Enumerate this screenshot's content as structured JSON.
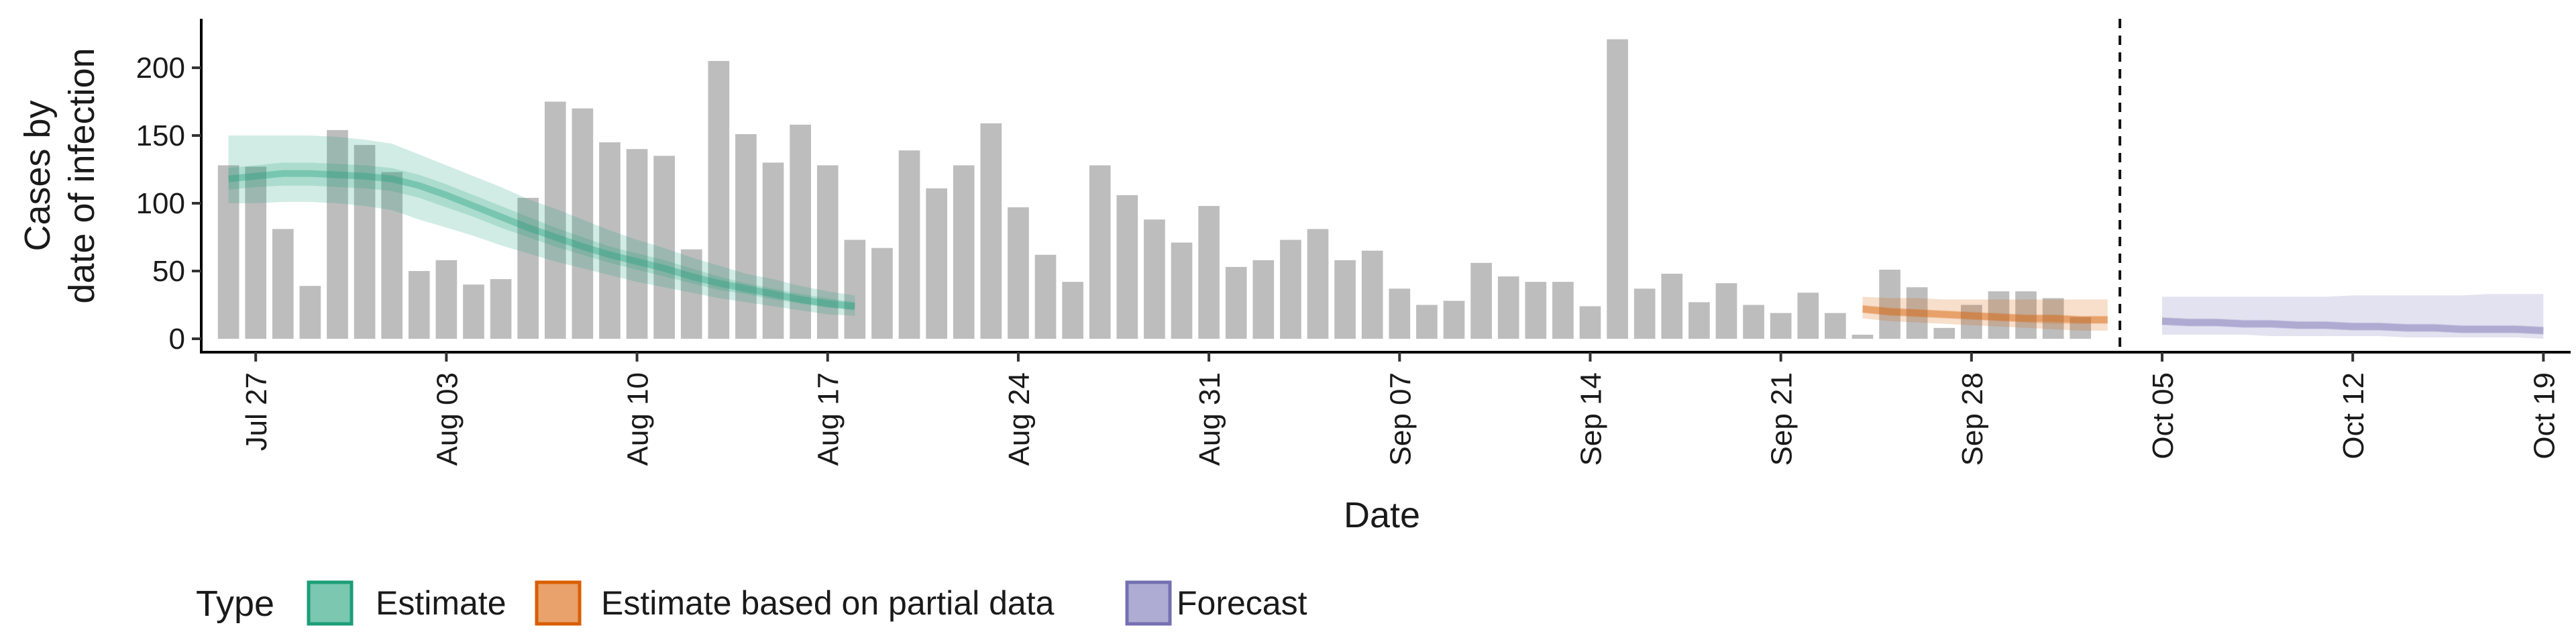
{
  "chart_data": {
    "type": "bar",
    "xlabel": "Date",
    "ylabel_lines": [
      "Cases by",
      "date of infection"
    ],
    "x_start": "2021-07-25",
    "x_end": "2021-10-20",
    "ylim": [
      0,
      232
    ],
    "yticks": [
      0,
      50,
      100,
      150,
      200
    ],
    "x_ticks": [
      {
        "date": "2021-07-27",
        "label": "Jul 27"
      },
      {
        "date": "2021-08-03",
        "label": "Aug 03"
      },
      {
        "date": "2021-08-10",
        "label": "Aug 10"
      },
      {
        "date": "2021-08-17",
        "label": "Aug 17"
      },
      {
        "date": "2021-08-24",
        "label": "Aug 24"
      },
      {
        "date": "2021-08-31",
        "label": "Aug 31"
      },
      {
        "date": "2021-09-07",
        "label": "Sep 07"
      },
      {
        "date": "2021-09-14",
        "label": "Sep 14"
      },
      {
        "date": "2021-09-21",
        "label": "Sep 21"
      },
      {
        "date": "2021-09-28",
        "label": "Sep 28"
      },
      {
        "date": "2021-10-05",
        "label": "Oct 05"
      },
      {
        "date": "2021-10-12",
        "label": "Oct 12"
      },
      {
        "date": "2021-10-19",
        "label": "Oct 19"
      }
    ],
    "bars_start": "2021-07-26",
    "bar_values": [
      128,
      127,
      81,
      39,
      154,
      143,
      123,
      50,
      58,
      40,
      44,
      104,
      175,
      170,
      145,
      140,
      135,
      66,
      205,
      151,
      130,
      158,
      128,
      73,
      67,
      139,
      111,
      128,
      159,
      97,
      62,
      42,
      128,
      106,
      88,
      71,
      98,
      53,
      58,
      73,
      81,
      58,
      65,
      37,
      25,
      28,
      56,
      46,
      42,
      42,
      24,
      221,
      37,
      48,
      27,
      41,
      25,
      19,
      34,
      19,
      3,
      51,
      38,
      8,
      25,
      35,
      35,
      30,
      16
    ],
    "forecast_start": "2021-10-04",
    "series": [
      {
        "name": "Estimate",
        "color": "#1b9e77",
        "start": "2021-07-26",
        "median": [
          118,
          120,
          122,
          122,
          121,
          120,
          118,
          113,
          106,
          98,
          90,
          82,
          75,
          68,
          62,
          57,
          52,
          46,
          41,
          37,
          33,
          29,
          26,
          24
        ],
        "inner": [
          [
            110,
            126
          ],
          [
            112,
            128
          ],
          [
            113,
            130
          ],
          [
            113,
            130
          ],
          [
            112,
            129
          ],
          [
            111,
            128
          ],
          [
            109,
            126
          ],
          [
            104,
            121
          ],
          [
            97,
            114
          ],
          [
            90,
            106
          ],
          [
            82,
            98
          ],
          [
            75,
            90
          ],
          [
            68,
            82
          ],
          [
            62,
            75
          ],
          [
            56,
            68
          ],
          [
            51,
            63
          ],
          [
            46,
            58
          ],
          [
            41,
            52
          ],
          [
            36,
            46
          ],
          [
            33,
            41
          ],
          [
            29,
            37
          ],
          [
            26,
            33
          ],
          [
            23,
            30
          ],
          [
            21,
            27
          ]
        ],
        "outer": [
          [
            100,
            150
          ],
          [
            100,
            150
          ],
          [
            101,
            150
          ],
          [
            101,
            150
          ],
          [
            100,
            149
          ],
          [
            98,
            147
          ],
          [
            95,
            144
          ],
          [
            88,
            136
          ],
          [
            82,
            128
          ],
          [
            76,
            120
          ],
          [
            69,
            112
          ],
          [
            63,
            103
          ],
          [
            57,
            96
          ],
          [
            52,
            88
          ],
          [
            47,
            80
          ],
          [
            42,
            73
          ],
          [
            38,
            67
          ],
          [
            34,
            60
          ],
          [
            30,
            54
          ],
          [
            27,
            48
          ],
          [
            24,
            44
          ],
          [
            21,
            39
          ],
          [
            18,
            35
          ],
          [
            17,
            32
          ]
        ]
      },
      {
        "name": "Estimate based on partial data",
        "color": "#d95f02",
        "start": "2021-09-24",
        "median": [
          22,
          20,
          19,
          18,
          17,
          16,
          15,
          15,
          14,
          14
        ],
        "inner": [
          [
            19,
            25
          ],
          [
            17,
            23
          ],
          [
            16,
            22
          ],
          [
            15,
            21
          ],
          [
            14,
            20
          ],
          [
            13,
            19
          ],
          [
            12,
            18
          ],
          [
            11,
            18
          ],
          [
            11,
            17
          ],
          [
            11,
            17
          ]
        ],
        "outer": [
          [
            15,
            31
          ],
          [
            13,
            30
          ],
          [
            12,
            30
          ],
          [
            11,
            29
          ],
          [
            10,
            29
          ],
          [
            9,
            29
          ],
          [
            8,
            29
          ],
          [
            7,
            29
          ],
          [
            6,
            29
          ],
          [
            6,
            29
          ]
        ]
      },
      {
        "name": "Forecast",
        "color": "#7570b3",
        "start": "2021-10-05",
        "median": [
          13,
          12,
          12,
          11,
          11,
          10,
          10,
          9,
          9,
          8,
          8,
          7,
          7,
          7,
          6
        ],
        "inner": [
          [
            10,
            16
          ],
          [
            9,
            15
          ],
          [
            9,
            15
          ],
          [
            8,
            14
          ],
          [
            8,
            14
          ],
          [
            7,
            13
          ],
          [
            7,
            13
          ],
          [
            6,
            12
          ],
          [
            6,
            12
          ],
          [
            5,
            11
          ],
          [
            5,
            11
          ],
          [
            4,
            10
          ],
          [
            4,
            10
          ],
          [
            4,
            10
          ],
          [
            3,
            9
          ]
        ],
        "outer": [
          [
            3,
            31
          ],
          [
            3,
            31
          ],
          [
            3,
            31
          ],
          [
            3,
            31
          ],
          [
            2,
            31
          ],
          [
            2,
            31
          ],
          [
            2,
            31
          ],
          [
            2,
            32
          ],
          [
            2,
            32
          ],
          [
            1,
            32
          ],
          [
            1,
            32
          ],
          [
            1,
            32
          ],
          [
            1,
            33
          ],
          [
            1,
            33
          ],
          [
            0,
            33
          ]
        ]
      }
    ],
    "legend": {
      "title": "Type",
      "position": "bottom",
      "items": [
        "Estimate",
        "Estimate based on partial data",
        "Forecast"
      ]
    },
    "grid": false
  }
}
